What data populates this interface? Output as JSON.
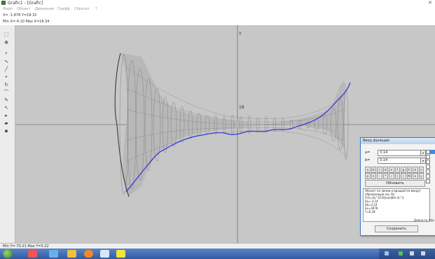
{
  "window": {
    "title": "Grafic1 - [Grafic]",
    "close_glyph": "✕"
  },
  "menu": {
    "items": [
      "Файл",
      "Объект",
      "Движение",
      "Графф",
      "Сбросит",
      "?"
    ]
  },
  "coords": {
    "line1": "X= -1.878  Y=18.32",
    "line2": "Min X=-4.10  Max X=18.34"
  },
  "bottom_status": {
    "text": "Min Y=-70.21  Max Y=5.22"
  },
  "axes": {
    "y_label": "Y",
    "tick_label": "18"
  },
  "colors": {
    "curve": "#3a3adc",
    "mesh": "#555555",
    "canvas": "#c7c7c7",
    "accent": "#3b78c4"
  },
  "tools": [
    "select-icon",
    "move-icon",
    "zoom-icon",
    "graph-icon",
    "line-icon",
    "point-icon",
    "rotate-icon",
    "curve-icon",
    "pen-icon",
    "cursor-icon",
    "bullet-icon",
    "folder-icon",
    "save-icon"
  ],
  "panel": {
    "title": "Ввод функции",
    "fields": [
      {
        "label": "a=",
        "value": "3.14"
      },
      {
        "label": "b=",
        "value": "3.14"
      }
    ],
    "keypad_row1": [
      "a",
      "b",
      "c",
      "d",
      "e",
      "f",
      "g",
      "h",
      "k",
      "n"
    ],
    "keypad_row2": [
      "p",
      "+",
      "-",
      "*",
      "/",
      "(",
      ")",
      "N",
      "x",
      "y"
    ],
    "eval_label": "Обновить",
    "output_lines": [
      "Объект по линии и вращается вокруг",
      "образующую ось Ox",
      "F(t)=5e^(0.6t)cos(8t+3)^2",
      "Ea=-3.14",
      "Eb=3.14",
      "Ex=3978",
      "T=6.28"
    ],
    "link_label": "Длина по Уфу",
    "close_label": "Сохранить"
  },
  "taskbar": {
    "icons": [
      "start-orb-icon",
      "media-player-icon",
      "explorer-icon",
      "folder-icon",
      "program-icon",
      "app-icon"
    ],
    "tray_icons": [
      "lang-icon",
      "network-icon",
      "volume-icon",
      "time-icon"
    ]
  }
}
